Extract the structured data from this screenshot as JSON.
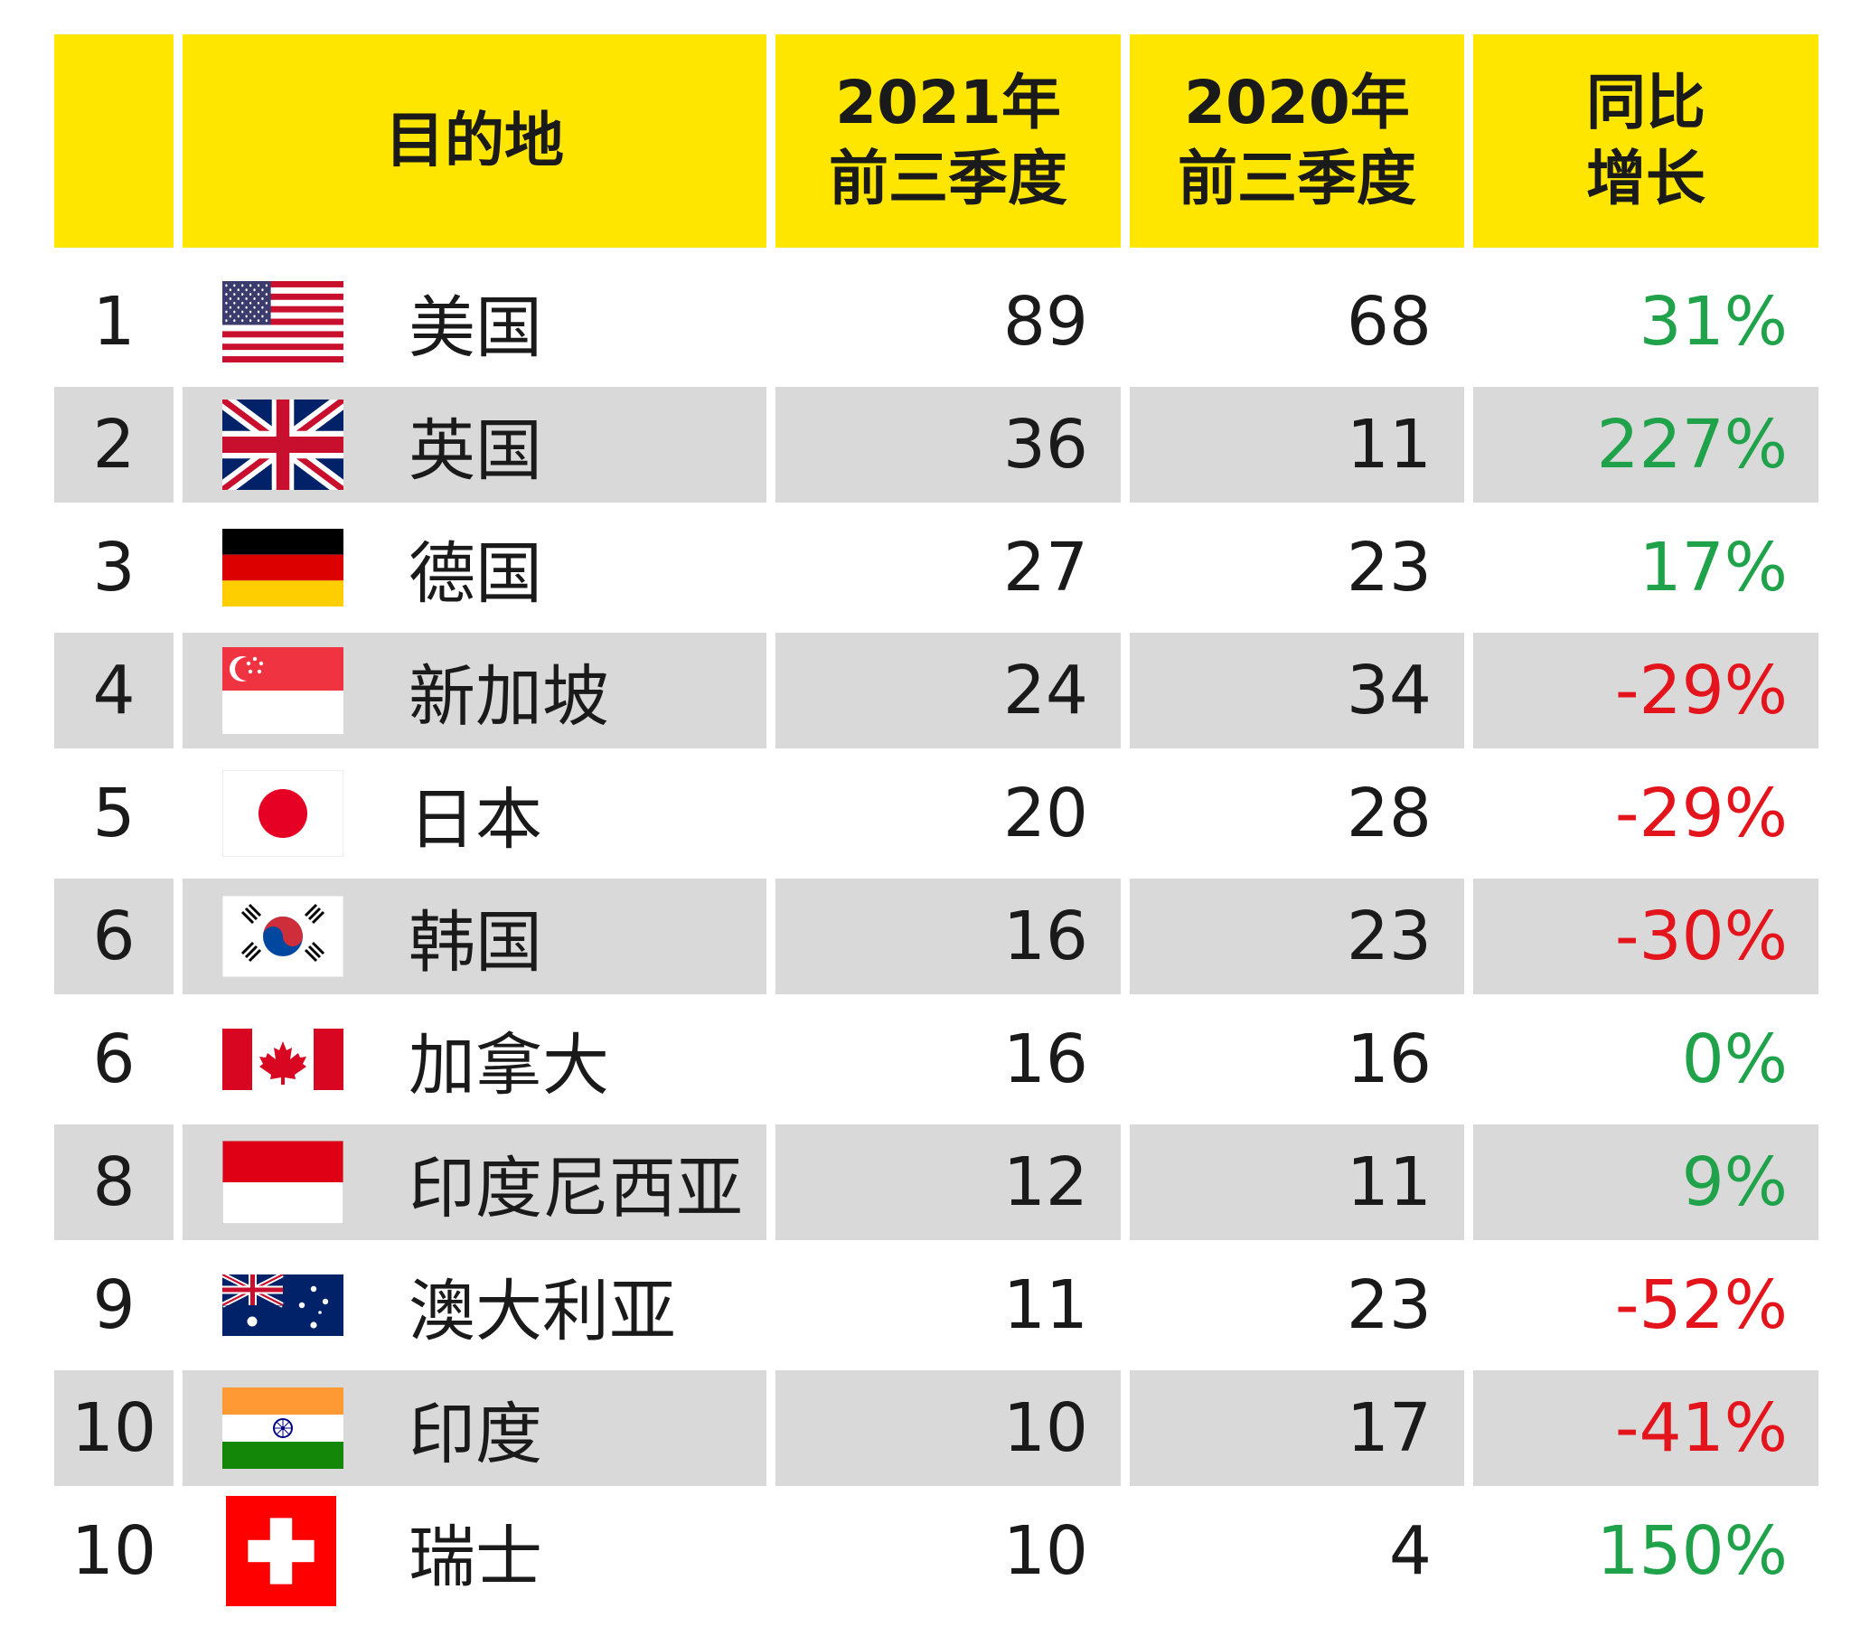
{
  "colors": {
    "header_bg": "#ffe600",
    "shaded_row": "#d9d9d9",
    "positive": "#1fa24a",
    "negative": "#e3141b"
  },
  "header": {
    "rank": "",
    "destination": "目的地",
    "col_2021_line1": "2021年",
    "col_2021_line2": "前三季度",
    "col_2020_line1": "2020年",
    "col_2020_line2": "前三季度",
    "growth_line1": "同比",
    "growth_line2": "增长"
  },
  "rows": [
    {
      "rank": "1",
      "flag": "usa-flag-icon",
      "destination": "美国",
      "v2021": "89",
      "v2020": "68",
      "growth": "31%",
      "trend": "positive"
    },
    {
      "rank": "2",
      "flag": "uk-flag-icon",
      "destination": "英国",
      "v2021": "36",
      "v2020": "11",
      "growth": "227%",
      "trend": "positive"
    },
    {
      "rank": "3",
      "flag": "germany-flag-icon",
      "destination": "德国",
      "v2021": "27",
      "v2020": "23",
      "growth": "17%",
      "trend": "positive"
    },
    {
      "rank": "4",
      "flag": "singapore-flag-icon",
      "destination": "新加坡",
      "v2021": "24",
      "v2020": "34",
      "growth": "-29%",
      "trend": "negative"
    },
    {
      "rank": "5",
      "flag": "japan-flag-icon",
      "destination": "日本",
      "v2021": "20",
      "v2020": "28",
      "growth": "-29%",
      "trend": "negative"
    },
    {
      "rank": "6",
      "flag": "south-korea-flag-icon",
      "destination": "韩国",
      "v2021": "16",
      "v2020": "23",
      "growth": "-30%",
      "trend": "negative"
    },
    {
      "rank": "6",
      "flag": "canada-flag-icon",
      "destination": "加拿大",
      "v2021": "16",
      "v2020": "16",
      "growth": "0%",
      "trend": "positive"
    },
    {
      "rank": "8",
      "flag": "indonesia-flag-icon",
      "destination": "印度尼西亚",
      "v2021": "12",
      "v2020": "11",
      "growth": "9%",
      "trend": "positive"
    },
    {
      "rank": "9",
      "flag": "australia-flag-icon",
      "destination": "澳大利亚",
      "v2021": "11",
      "v2020": "23",
      "growth": "-52%",
      "trend": "negative"
    },
    {
      "rank": "10",
      "flag": "india-flag-icon",
      "destination": "印度",
      "v2021": "10",
      "v2020": "17",
      "growth": "-41%",
      "trend": "negative"
    },
    {
      "rank": "10",
      "flag": "switzerland-flag-icon",
      "destination": "瑞士",
      "v2021": "10",
      "v2020": "4",
      "growth": "150%",
      "trend": "positive"
    }
  ]
}
